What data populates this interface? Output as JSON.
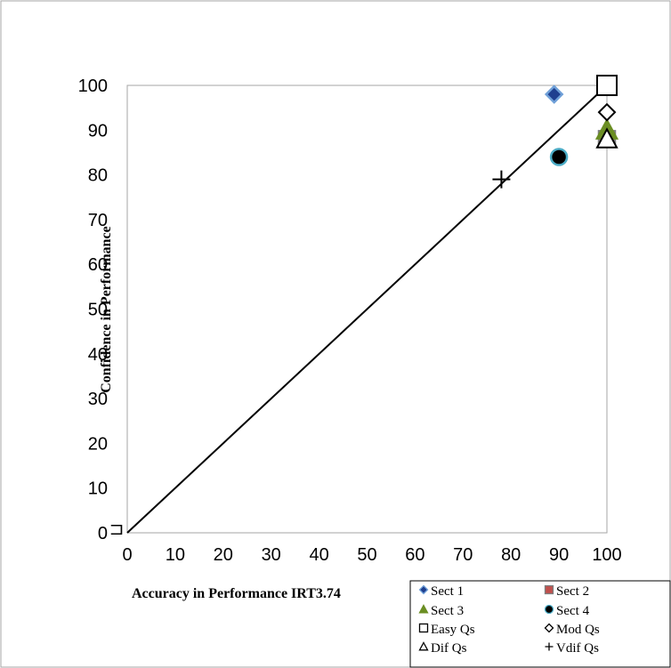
{
  "chart_data": {
    "type": "scatter",
    "title": "",
    "xlabel": "Accuracy in Performance IRT3.74",
    "ylabel": "Confidence in Performance",
    "xlim": [
      0,
      100
    ],
    "ylim": [
      0,
      100
    ],
    "x_ticks": [
      0,
      10,
      20,
      30,
      40,
      50,
      60,
      70,
      80,
      90,
      100
    ],
    "y_ticks": [
      0,
      10,
      20,
      30,
      40,
      50,
      60,
      70,
      80,
      90,
      100
    ],
    "grid": false,
    "legend_position": "bottom-right",
    "reference_line": {
      "from": [
        0,
        0
      ],
      "to": [
        100,
        100
      ]
    },
    "series": [
      {
        "name": "Sect 1",
        "marker": "diamond",
        "fill": "#1f3f8f",
        "stroke": "#6fa0d8",
        "points": [
          [
            89,
            98
          ]
        ]
      },
      {
        "name": "Sect 2",
        "marker": "square",
        "fill": "#c0504d",
        "stroke": "#7f7f7f",
        "points": [
          [
            100,
            88
          ]
        ]
      },
      {
        "name": "Sect 3",
        "marker": "triangle",
        "fill": "#6b8e23",
        "stroke": "#6b8e23",
        "points": [
          [
            100,
            90
          ]
        ]
      },
      {
        "name": "Sect 4",
        "marker": "circle",
        "fill": "#000000",
        "stroke": "#4bacc6",
        "points": [
          [
            90,
            84
          ]
        ]
      },
      {
        "name": "Easy Qs",
        "marker": "square",
        "fill": "#ffffff",
        "stroke": "#000000",
        "points": [
          [
            100,
            100
          ]
        ]
      },
      {
        "name": "Mod Qs",
        "marker": "diamond",
        "fill": "#ffffff",
        "stroke": "#000000",
        "points": [
          [
            100,
            94
          ]
        ]
      },
      {
        "name": "Dif Qs",
        "marker": "triangle",
        "fill": "#ffffff",
        "stroke": "#000000",
        "points": [
          [
            100,
            88
          ]
        ]
      },
      {
        "name": "Vdif Qs",
        "marker": "plus",
        "fill": "none",
        "stroke": "#000000",
        "points": [
          [
            78,
            79
          ]
        ]
      }
    ],
    "annotations": [
      {
        "text": "⊐",
        "x": 0,
        "y": 0
      }
    ]
  }
}
